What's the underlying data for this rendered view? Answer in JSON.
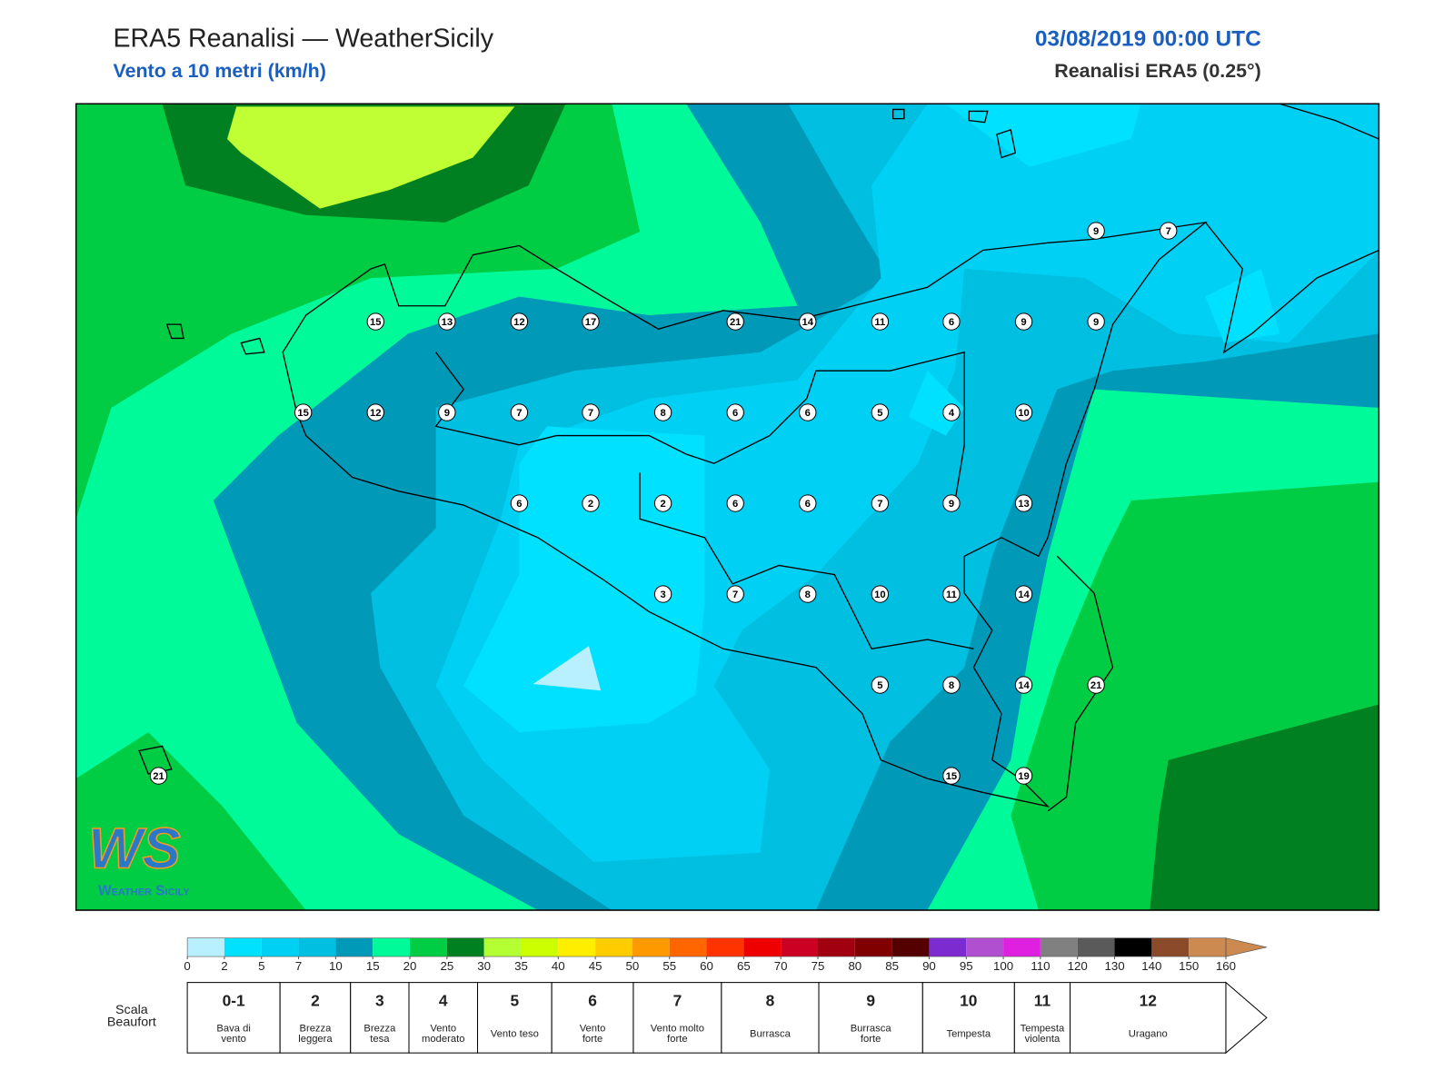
{
  "header": {
    "title": "ERA5 Reanalisi — WeatherSicily",
    "subtitle": "Vento a 10 metri (km/h)",
    "date": "03/08/2019 00:00 UTC",
    "source": "Reanalisi ERA5 (0.25°)"
  },
  "map": {
    "stations": [
      9,
      7,
      15,
      13,
      12,
      17,
      21,
      14,
      11,
      6,
      9,
      9,
      15,
      12,
      9,
      7,
      7,
      8,
      6,
      6,
      5,
      4,
      10,
      6,
      2,
      2,
      6,
      6,
      7,
      9,
      13,
      3,
      7,
      8,
      10,
      11,
      14,
      5,
      8,
      14,
      21,
      15,
      19,
      21
    ]
  },
  "logo": {
    "mark": "WS",
    "name": "Weather Sicily"
  },
  "colorbar": {
    "ticks": [
      0,
      2,
      5,
      7,
      10,
      15,
      20,
      25,
      30,
      35,
      40,
      45,
      50,
      55,
      60,
      65,
      70,
      75,
      80,
      85,
      90,
      95,
      100,
      110,
      120,
      130,
      140,
      150,
      160
    ],
    "colors": [
      "#b8f0ff",
      "#00e1ff",
      "#00d1f4",
      "#00bfe0",
      "#0099b8",
      "#00fa9a",
      "#00cc44",
      "#008020",
      "#b3ff33",
      "#ccff00",
      "#ffee00",
      "#ffcc00",
      "#ff9900",
      "#ff6600",
      "#ff3300",
      "#ee0000",
      "#cc0022",
      "#a00010",
      "#800000",
      "#550000",
      "#7b2bd0",
      "#b050d0",
      "#e020e0",
      "#808080",
      "#5a5a5a",
      "#000000",
      "#8b4a2a",
      "#cd8a50"
    ]
  },
  "beaufort": {
    "label": [
      "Scala",
      "Beaufort"
    ],
    "classes": [
      {
        "force": "0-1",
        "desc": [
          "Bava di",
          "vento"
        ]
      },
      {
        "force": "2",
        "desc": [
          "Brezza",
          "leggera"
        ]
      },
      {
        "force": "3",
        "desc": [
          "Brezza",
          "tesa"
        ]
      },
      {
        "force": "4",
        "desc": [
          "Vento",
          "moderato"
        ]
      },
      {
        "force": "5",
        "desc": [
          "Vento teso"
        ]
      },
      {
        "force": "6",
        "desc": [
          "Vento",
          "forte"
        ]
      },
      {
        "force": "7",
        "desc": [
          "Vento molto",
          "forte"
        ]
      },
      {
        "force": "8",
        "desc": [
          "Burrasca"
        ]
      },
      {
        "force": "9",
        "desc": [
          "Burrasca",
          "forte"
        ]
      },
      {
        "force": "10",
        "desc": [
          "Tempesta"
        ]
      },
      {
        "force": "11",
        "desc": [
          "Tempesta",
          "violenta"
        ]
      },
      {
        "force": "12",
        "desc": [
          "Uragano"
        ]
      }
    ]
  }
}
